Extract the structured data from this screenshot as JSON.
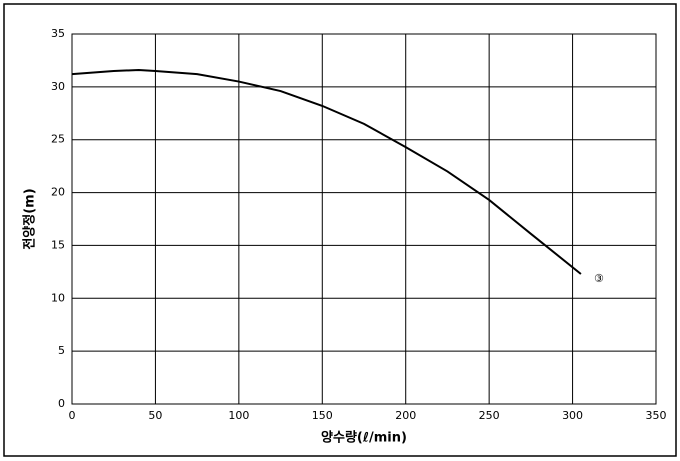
{
  "chart_data": {
    "type": "line",
    "x_label": "양수량(ℓ/min)",
    "y_label": "전양정(m)",
    "xlim": [
      0,
      350
    ],
    "xticks": [
      0,
      50,
      100,
      150,
      200,
      250,
      300,
      350
    ],
    "ylim": [
      0,
      35
    ],
    "yticks": [
      0,
      5,
      10,
      15,
      20,
      25,
      30,
      35
    ],
    "grid": true,
    "series": [
      {
        "name": "③",
        "color": "#000000",
        "x": [
          0,
          25,
          40,
          50,
          75,
          100,
          125,
          150,
          175,
          200,
          225,
          250,
          275,
          305
        ],
        "values": [
          31.2,
          31.5,
          31.6,
          31.5,
          31.2,
          30.5,
          29.6,
          28.2,
          26.5,
          24.3,
          22.0,
          19.3,
          16.1,
          12.3
        ]
      }
    ]
  }
}
